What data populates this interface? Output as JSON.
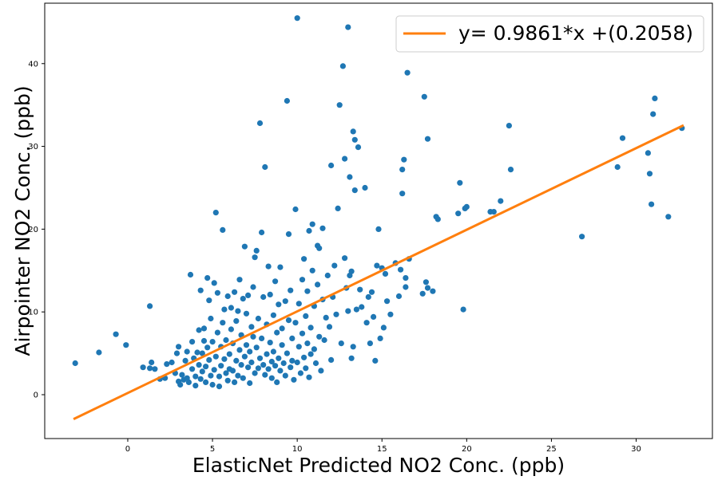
{
  "chart_data": {
    "type": "scatter",
    "title": "",
    "xlabel": "ElasticNet Predicted NO2 Conc. (ppb)",
    "ylabel": "Airpointer NO2 Conc. (ppb)",
    "xlim": [
      -4.9,
      34.5
    ],
    "ylim": [
      -5.3,
      47.3
    ],
    "xticks": [
      0,
      5,
      10,
      15,
      20,
      25,
      30
    ],
    "yticks": [
      0,
      10,
      20,
      30,
      40
    ],
    "grid": false,
    "legend_position": "top-right",
    "colors": {
      "points": "#1f77b4",
      "fit_line": "#ff7f0e"
    },
    "fit": {
      "label": "y= 0.9861*x +(0.2058)",
      "slope": 0.9861,
      "intercept": 0.2058,
      "x_range": [
        -3.2,
        32.8
      ]
    },
    "points": [
      [
        -3.1,
        3.8
      ],
      [
        -1.7,
        5.1
      ],
      [
        -0.7,
        7.3
      ],
      [
        -0.1,
        6.0
      ],
      [
        0.9,
        3.3
      ],
      [
        1.3,
        3.2
      ],
      [
        1.4,
        3.9
      ],
      [
        1.3,
        10.7
      ],
      [
        1.6,
        3.1
      ],
      [
        1.9,
        1.9
      ],
      [
        2.2,
        2.0
      ],
      [
        2.3,
        3.7
      ],
      [
        2.6,
        3.9
      ],
      [
        2.8,
        2.6
      ],
      [
        2.9,
        5.0
      ],
      [
        3.0,
        5.8
      ],
      [
        3.0,
        1.6
      ],
      [
        3.1,
        1.2
      ],
      [
        3.2,
        2.4
      ],
      [
        3.3,
        1.8
      ],
      [
        3.4,
        4.1
      ],
      [
        3.5,
        2.0
      ],
      [
        3.5,
        5.2
      ],
      [
        3.6,
        1.5
      ],
      [
        3.7,
        14.5
      ],
      [
        3.8,
        3.1
      ],
      [
        3.8,
        6.4
      ],
      [
        3.9,
        4.4
      ],
      [
        4.0,
        2.2
      ],
      [
        4.0,
        1.1
      ],
      [
        4.1,
        5.1
      ],
      [
        4.2,
        3.6
      ],
      [
        4.2,
        7.8
      ],
      [
        4.3,
        1.9
      ],
      [
        4.3,
        12.6
      ],
      [
        4.4,
        5.0
      ],
      [
        4.4,
        2.8
      ],
      [
        4.5,
        6.5
      ],
      [
        4.5,
        8.0
      ],
      [
        4.6,
        3.4
      ],
      [
        4.6,
        1.5
      ],
      [
        4.7,
        14.1
      ],
      [
        4.7,
        5.7
      ],
      [
        4.8,
        11.4
      ],
      [
        4.8,
        4.2
      ],
      [
        4.9,
        2.3
      ],
      [
        4.9,
        9.2
      ],
      [
        5.0,
        6.4
      ],
      [
        5.0,
        1.2
      ],
      [
        5.1,
        3.0
      ],
      [
        5.1,
        13.5
      ],
      [
        5.2,
        4.6
      ],
      [
        5.2,
        22.0
      ],
      [
        5.3,
        12.3
      ],
      [
        5.3,
        7.5
      ],
      [
        5.4,
        2.2
      ],
      [
        5.4,
        1.0
      ],
      [
        5.5,
        5.8
      ],
      [
        5.5,
        3.5
      ],
      [
        5.6,
        19.9
      ],
      [
        5.6,
        8.7
      ],
      [
        5.7,
        4.3
      ],
      [
        5.7,
        10.3
      ],
      [
        5.8,
        2.6
      ],
      [
        5.8,
        6.6
      ],
      [
        5.9,
        11.9
      ],
      [
        5.9,
        1.7
      ],
      [
        6.0,
        4.9
      ],
      [
        6.0,
        3.1
      ],
      [
        6.1,
        7.9
      ],
      [
        6.1,
        10.5
      ],
      [
        6.2,
        2.9
      ],
      [
        6.2,
        6.2
      ],
      [
        6.3,
        12.4
      ],
      [
        6.3,
        1.5
      ],
      [
        6.4,
        4.1
      ],
      [
        6.4,
        8.9
      ],
      [
        6.5,
        10.1
      ],
      [
        6.5,
        2.3
      ],
      [
        6.6,
        13.9
      ],
      [
        6.6,
        5.4
      ],
      [
        6.7,
        3.6
      ],
      [
        6.7,
        7.2
      ],
      [
        6.8,
        11.6
      ],
      [
        6.8,
        2.0
      ],
      [
        6.9,
        4.6
      ],
      [
        6.9,
        17.9
      ],
      [
        7.0,
        9.8
      ],
      [
        7.0,
        6.0
      ],
      [
        7.1,
        3.3
      ],
      [
        7.1,
        12.0
      ],
      [
        7.2,
        1.4
      ],
      [
        7.2,
        5.2
      ],
      [
        7.3,
        8.2
      ],
      [
        7.3,
        3.9
      ],
      [
        7.4,
        7.0
      ],
      [
        7.4,
        13.0
      ],
      [
        7.5,
        2.6
      ],
      [
        7.5,
        16.6
      ],
      [
        7.6,
        5.7
      ],
      [
        7.6,
        17.4
      ],
      [
        7.7,
        9.2
      ],
      [
        7.7,
        3.2
      ],
      [
        7.8,
        4.4
      ],
      [
        7.8,
        32.8
      ],
      [
        7.9,
        6.8
      ],
      [
        7.9,
        19.6
      ],
      [
        8.0,
        3.6
      ],
      [
        8.0,
        11.8
      ],
      [
        8.1,
        27.5
      ],
      [
        8.1,
        2.4
      ],
      [
        8.2,
        4.9
      ],
      [
        8.2,
        8.5
      ],
      [
        8.3,
        15.5
      ],
      [
        8.3,
        3.1
      ],
      [
        8.4,
        6.3
      ],
      [
        8.4,
        12.1
      ],
      [
        8.5,
        4.0
      ],
      [
        8.5,
        2.0
      ],
      [
        8.6,
        9.6
      ],
      [
        8.6,
        5.2
      ],
      [
        8.7,
        13.7
      ],
      [
        8.7,
        3.5
      ],
      [
        8.8,
        7.5
      ],
      [
        8.8,
        1.5
      ],
      [
        8.9,
        10.9
      ],
      [
        8.9,
        4.4
      ],
      [
        9.0,
        2.9
      ],
      [
        9.0,
        15.4
      ],
      [
        9.1,
        6.0
      ],
      [
        9.1,
        8.0
      ],
      [
        9.2,
        3.8
      ],
      [
        9.3,
        11.3
      ],
      [
        9.3,
        2.3
      ],
      [
        9.4,
        35.5
      ],
      [
        9.4,
        5.0
      ],
      [
        9.5,
        19.4
      ],
      [
        9.5,
        9.0
      ],
      [
        9.6,
        3.3
      ],
      [
        9.6,
        12.6
      ],
      [
        9.7,
        6.8
      ],
      [
        9.7,
        4.1
      ],
      [
        9.8,
        1.8
      ],
      [
        9.9,
        22.4
      ],
      [
        9.9,
        8.7
      ],
      [
        10.0,
        45.5
      ],
      [
        10.0,
        3.9
      ],
      [
        10.1,
        11.0
      ],
      [
        10.1,
        5.8
      ],
      [
        10.2,
        2.6
      ],
      [
        10.3,
        13.9
      ],
      [
        10.3,
        7.4
      ],
      [
        10.4,
        4.5
      ],
      [
        10.4,
        16.4
      ],
      [
        10.5,
        9.5
      ],
      [
        10.5,
        3.2
      ],
      [
        10.6,
        12.5
      ],
      [
        10.6,
        6.2
      ],
      [
        10.7,
        19.8
      ],
      [
        10.7,
        2.1
      ],
      [
        10.8,
        4.9
      ],
      [
        10.8,
        8.1
      ],
      [
        10.9,
        15.0
      ],
      [
        10.9,
        20.6
      ],
      [
        11.0,
        10.7
      ],
      [
        11.0,
        5.5
      ],
      [
        11.1,
        3.8
      ],
      [
        11.2,
        13.3
      ],
      [
        11.2,
        18.0
      ],
      [
        11.3,
        7.0
      ],
      [
        11.3,
        17.7
      ],
      [
        11.4,
        2.9
      ],
      [
        11.5,
        11.5
      ],
      [
        11.5,
        20.1
      ],
      [
        11.6,
        6.6
      ],
      [
        11.7,
        9.3
      ],
      [
        11.8,
        14.4
      ],
      [
        11.9,
        8.2
      ],
      [
        12.0,
        27.7
      ],
      [
        12.0,
        4.2
      ],
      [
        12.1,
        11.8
      ],
      [
        12.2,
        15.6
      ],
      [
        12.3,
        9.7
      ],
      [
        12.4,
        22.5
      ],
      [
        12.5,
        35.0
      ],
      [
        12.6,
        6.2
      ],
      [
        12.7,
        39.7
      ],
      [
        12.8,
        28.5
      ],
      [
        12.8,
        16.5
      ],
      [
        12.9,
        12.9
      ],
      [
        13.0,
        44.4
      ],
      [
        13.0,
        10.1
      ],
      [
        13.1,
        26.3
      ],
      [
        13.1,
        14.4
      ],
      [
        13.2,
        4.4
      ],
      [
        13.2,
        14.9
      ],
      [
        13.3,
        31.8
      ],
      [
        13.3,
        5.8
      ],
      [
        13.4,
        30.8
      ],
      [
        13.4,
        24.7
      ],
      [
        13.5,
        10.3
      ],
      [
        13.6,
        29.9
      ],
      [
        13.7,
        12.7
      ],
      [
        13.8,
        10.6
      ],
      [
        14.0,
        25.0
      ],
      [
        14.1,
        8.7
      ],
      [
        14.2,
        11.8
      ],
      [
        14.3,
        6.2
      ],
      [
        14.4,
        12.4
      ],
      [
        14.5,
        9.4
      ],
      [
        14.6,
        4.1
      ],
      [
        14.7,
        15.6
      ],
      [
        14.8,
        20.0
      ],
      [
        14.9,
        6.8
      ],
      [
        15.0,
        15.3
      ],
      [
        15.1,
        8.1
      ],
      [
        15.2,
        14.6
      ],
      [
        15.3,
        11.3
      ],
      [
        15.5,
        9.7
      ],
      [
        15.8,
        15.9
      ],
      [
        16.0,
        11.9
      ],
      [
        16.1,
        15.1
      ],
      [
        16.2,
        24.3
      ],
      [
        16.2,
        27.2
      ],
      [
        16.3,
        28.4
      ],
      [
        16.4,
        14.1
      ],
      [
        16.4,
        13.0
      ],
      [
        16.5,
        38.9
      ],
      [
        16.6,
        16.4
      ],
      [
        17.4,
        12.2
      ],
      [
        17.5,
        36.0
      ],
      [
        17.6,
        13.6
      ],
      [
        17.7,
        30.9
      ],
      [
        17.7,
        12.9
      ],
      [
        18.0,
        12.5
      ],
      [
        18.2,
        21.5
      ],
      [
        18.3,
        21.2
      ],
      [
        19.5,
        21.9
      ],
      [
        19.6,
        25.6
      ],
      [
        19.8,
        10.3
      ],
      [
        19.9,
        22.5
      ],
      [
        20.0,
        22.7
      ],
      [
        21.4,
        22.1
      ],
      [
        21.6,
        22.1
      ],
      [
        22.0,
        23.4
      ],
      [
        22.5,
        32.5
      ],
      [
        22.6,
        27.2
      ],
      [
        26.8,
        19.1
      ],
      [
        28.9,
        27.5
      ],
      [
        29.2,
        31.0
      ],
      [
        30.7,
        29.2
      ],
      [
        30.8,
        26.7
      ],
      [
        30.9,
        23.0
      ],
      [
        31.0,
        33.9
      ],
      [
        31.1,
        35.8
      ],
      [
        31.9,
        21.5
      ],
      [
        32.7,
        32.2
      ]
    ]
  }
}
